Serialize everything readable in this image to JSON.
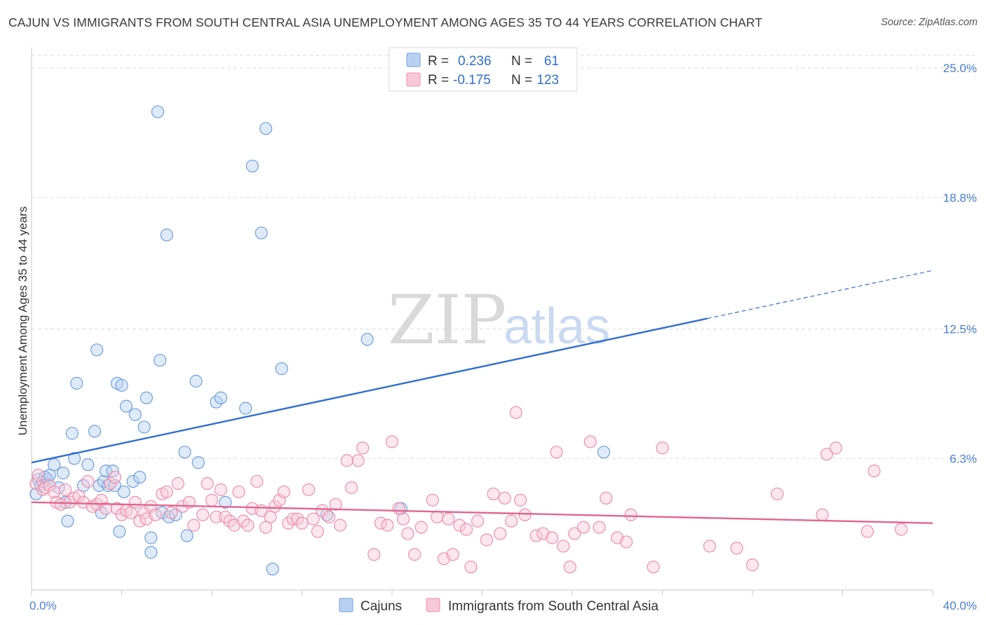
{
  "title": "CAJUN VS IMMIGRANTS FROM SOUTH CENTRAL ASIA UNEMPLOYMENT AMONG AGES 35 TO 44 YEARS CORRELATION CHART",
  "source": "Source: ZipAtlas.com",
  "watermark": {
    "zip": "ZIP",
    "atlas": "atlas"
  },
  "chart_data": {
    "type": "scatter",
    "xlim": [
      0,
      40
    ],
    "ylim": [
      0,
      25
    ],
    "x_tick_labels": [
      {
        "value": 0,
        "label": "0.0%"
      },
      {
        "value": 40,
        "label": "40.0%"
      }
    ],
    "y_tick_labels": [
      {
        "value": 6.3,
        "label": "6.3%"
      },
      {
        "value": 12.5,
        "label": "12.5%"
      },
      {
        "value": 18.8,
        "label": "18.8%"
      },
      {
        "value": 25.0,
        "label": "25.0%"
      }
    ],
    "ylabel": "Unemployment Among Ages 35 to 44 years",
    "grid": true,
    "legend_placement": "top-center",
    "legend": [
      {
        "r_label": "R =",
        "r_value": "0.236",
        "n_label": "N =",
        "n_value": "61"
      },
      {
        "r_label": "R =",
        "r_value": "-0.175",
        "n_label": "N =",
        "n_value": "123"
      }
    ],
    "series": [
      {
        "name": "Cajuns",
        "color": "#6f9fdc",
        "fill": "#b9d1f0",
        "trend": {
          "x0": 0,
          "y0": 6.1,
          "x1": 30,
          "y1": 13.0,
          "dash_x1": 40,
          "dash_y1": 15.3,
          "color": "#2f6fd0"
        },
        "points": [
          [
            0.2,
            4.6
          ],
          [
            0.3,
            5.3
          ],
          [
            0.4,
            5.0
          ],
          [
            0.5,
            5.2
          ],
          [
            0.6,
            5.4
          ],
          [
            0.7,
            5.3
          ],
          [
            0.8,
            5.5
          ],
          [
            1.0,
            6.0
          ],
          [
            1.2,
            4.9
          ],
          [
            1.4,
            5.6
          ],
          [
            1.5,
            4.2
          ],
          [
            1.6,
            3.3
          ],
          [
            1.8,
            7.5
          ],
          [
            1.9,
            6.3
          ],
          [
            2.0,
            9.9
          ],
          [
            2.3,
            5.0
          ],
          [
            2.5,
            6.0
          ],
          [
            2.8,
            7.6
          ],
          [
            2.9,
            11.5
          ],
          [
            3.0,
            5.0
          ],
          [
            3.1,
            3.7
          ],
          [
            3.2,
            5.2
          ],
          [
            3.3,
            5.7
          ],
          [
            3.4,
            5.0
          ],
          [
            3.6,
            5.7
          ],
          [
            3.7,
            5.0
          ],
          [
            3.8,
            9.9
          ],
          [
            3.9,
            2.8
          ],
          [
            4.0,
            9.8
          ],
          [
            4.1,
            4.7
          ],
          [
            4.2,
            8.8
          ],
          [
            4.5,
            5.2
          ],
          [
            4.6,
            8.4
          ],
          [
            4.8,
            5.4
          ],
          [
            5.0,
            7.8
          ],
          [
            5.1,
            9.2
          ],
          [
            5.3,
            2.5
          ],
          [
            5.3,
            1.8
          ],
          [
            5.6,
            22.9
          ],
          [
            5.7,
            11.0
          ],
          [
            5.8,
            3.7
          ],
          [
            6.0,
            17.0
          ],
          [
            6.1,
            3.5
          ],
          [
            6.4,
            3.6
          ],
          [
            6.8,
            6.6
          ],
          [
            6.9,
            2.6
          ],
          [
            7.3,
            10.0
          ],
          [
            7.4,
            6.1
          ],
          [
            8.2,
            9.0
          ],
          [
            8.4,
            9.2
          ],
          [
            8.6,
            4.2
          ],
          [
            9.5,
            8.7
          ],
          [
            9.8,
            20.3
          ],
          [
            10.2,
            17.1
          ],
          [
            10.4,
            22.1
          ],
          [
            10.7,
            1.0
          ],
          [
            11.1,
            10.6
          ],
          [
            13.1,
            3.6
          ],
          [
            14.9,
            12.0
          ],
          [
            16.4,
            3.9
          ],
          [
            25.4,
            6.6
          ]
        ]
      },
      {
        "name": "Immigrants from South Central Asia",
        "color": "#ec8fae",
        "fill": "#f7c9d8",
        "trend": {
          "x0": 0,
          "y0": 4.2,
          "x1": 40,
          "y1": 3.2,
          "color": "#e0668e"
        },
        "points": [
          [
            0.2,
            5.1
          ],
          [
            0.3,
            5.5
          ],
          [
            0.5,
            4.8
          ],
          [
            0.6,
            4.9
          ],
          [
            0.8,
            5.0
          ],
          [
            1.0,
            4.7
          ],
          [
            1.1,
            4.2
          ],
          [
            1.3,
            4.1
          ],
          [
            1.5,
            4.8
          ],
          [
            1.7,
            4.2
          ],
          [
            1.9,
            4.4
          ],
          [
            2.1,
            4.5
          ],
          [
            2.3,
            4.2
          ],
          [
            2.5,
            5.2
          ],
          [
            2.7,
            4.0
          ],
          [
            2.9,
            4.1
          ],
          [
            3.1,
            4.3
          ],
          [
            3.3,
            3.9
          ],
          [
            3.5,
            5.1
          ],
          [
            3.7,
            5.4
          ],
          [
            3.8,
            3.9
          ],
          [
            4.0,
            3.6
          ],
          [
            4.2,
            3.8
          ],
          [
            4.4,
            3.7
          ],
          [
            4.6,
            4.2
          ],
          [
            4.8,
            3.3
          ],
          [
            5.0,
            3.7
          ],
          [
            5.1,
            3.4
          ],
          [
            5.3,
            4.0
          ],
          [
            5.5,
            3.6
          ],
          [
            5.8,
            4.6
          ],
          [
            6.0,
            4.7
          ],
          [
            6.2,
            3.7
          ],
          [
            6.5,
            5.1
          ],
          [
            6.7,
            4.0
          ],
          [
            7.0,
            4.2
          ],
          [
            7.2,
            3.1
          ],
          [
            7.6,
            3.6
          ],
          [
            7.8,
            5.1
          ],
          [
            8.0,
            4.3
          ],
          [
            8.2,
            3.5
          ],
          [
            8.4,
            4.8
          ],
          [
            8.6,
            3.5
          ],
          [
            8.8,
            3.3
          ],
          [
            9.0,
            3.1
          ],
          [
            9.2,
            4.7
          ],
          [
            9.4,
            3.3
          ],
          [
            9.6,
            3.1
          ],
          [
            9.8,
            3.9
          ],
          [
            10.0,
            5.2
          ],
          [
            10.2,
            3.8
          ],
          [
            10.4,
            3.0
          ],
          [
            10.6,
            3.5
          ],
          [
            10.8,
            4.0
          ],
          [
            11.0,
            4.3
          ],
          [
            11.2,
            4.7
          ],
          [
            11.4,
            3.2
          ],
          [
            11.6,
            3.4
          ],
          [
            11.8,
            3.4
          ],
          [
            12.0,
            3.2
          ],
          [
            12.3,
            4.8
          ],
          [
            12.5,
            3.4
          ],
          [
            12.7,
            2.8
          ],
          [
            12.9,
            3.8
          ],
          [
            13.2,
            3.5
          ],
          [
            13.5,
            4.1
          ],
          [
            13.7,
            3.1
          ],
          [
            14.0,
            6.2
          ],
          [
            14.2,
            4.9
          ],
          [
            14.5,
            6.2
          ],
          [
            14.7,
            6.8
          ],
          [
            15.2,
            1.7
          ],
          [
            15.5,
            3.2
          ],
          [
            15.8,
            3.1
          ],
          [
            16.0,
            7.1
          ],
          [
            16.3,
            3.9
          ],
          [
            16.5,
            3.4
          ],
          [
            16.7,
            2.7
          ],
          [
            17.0,
            1.7
          ],
          [
            17.3,
            3.0
          ],
          [
            17.8,
            4.3
          ],
          [
            18.0,
            3.5
          ],
          [
            18.3,
            1.5
          ],
          [
            18.5,
            3.4
          ],
          [
            18.7,
            1.7
          ],
          [
            19.0,
            3.1
          ],
          [
            19.3,
            2.9
          ],
          [
            19.5,
            1.1
          ],
          [
            19.8,
            3.3
          ],
          [
            20.2,
            2.4
          ],
          [
            20.5,
            4.6
          ],
          [
            20.8,
            2.7
          ],
          [
            21.0,
            4.4
          ],
          [
            21.3,
            3.3
          ],
          [
            21.5,
            8.5
          ],
          [
            21.7,
            4.3
          ],
          [
            21.9,
            3.6
          ],
          [
            22.4,
            2.6
          ],
          [
            22.7,
            2.7
          ],
          [
            23.1,
            2.5
          ],
          [
            23.3,
            6.6
          ],
          [
            23.6,
            2.1
          ],
          [
            23.9,
            1.1
          ],
          [
            24.1,
            2.7
          ],
          [
            24.5,
            3.0
          ],
          [
            24.8,
            7.1
          ],
          [
            25.2,
            3.0
          ],
          [
            25.5,
            4.4
          ],
          [
            26.0,
            2.5
          ],
          [
            26.4,
            2.3
          ],
          [
            26.6,
            3.6
          ],
          [
            27.6,
            1.1
          ],
          [
            28.0,
            6.8
          ],
          [
            30.1,
            2.1
          ],
          [
            31.3,
            2.0
          ],
          [
            32.0,
            1.2
          ],
          [
            33.1,
            4.6
          ],
          [
            35.1,
            3.6
          ],
          [
            35.3,
            6.5
          ],
          [
            35.7,
            6.8
          ],
          [
            37.1,
            2.8
          ],
          [
            37.4,
            5.7
          ],
          [
            38.6,
            2.9
          ]
        ]
      }
    ]
  }
}
